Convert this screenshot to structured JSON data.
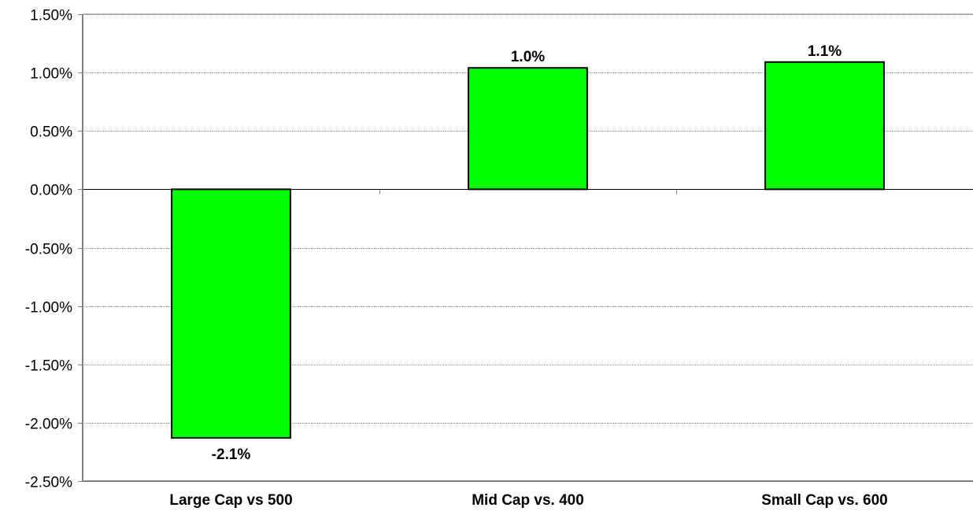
{
  "chart_data": {
    "type": "bar",
    "title": "",
    "xlabel": "",
    "ylabel": "",
    "categories": [
      "Large Cap vs  500",
      "Mid Cap vs. 400",
      "Small Cap vs. 600"
    ],
    "values": [
      -2.13,
      1.04,
      1.09
    ],
    "data_labels": [
      "-2.1%",
      "1.0%",
      "1.1%"
    ],
    "ylim": [
      -2.5,
      1.5
    ],
    "yticks": [
      1.5,
      1.0,
      0.5,
      0.0,
      -0.5,
      -1.0,
      -1.5,
      -2.0,
      -2.5
    ],
    "ytick_labels": [
      "1.50%",
      "1.00%",
      "0.50%",
      "0.00%",
      "-0.50%",
      "-1.00%",
      "-1.50%",
      "-2.00%",
      "-2.50%"
    ],
    "grid": true,
    "legend": "none",
    "bar_color": "#00ff00",
    "bar_edge_color": "#000000"
  }
}
